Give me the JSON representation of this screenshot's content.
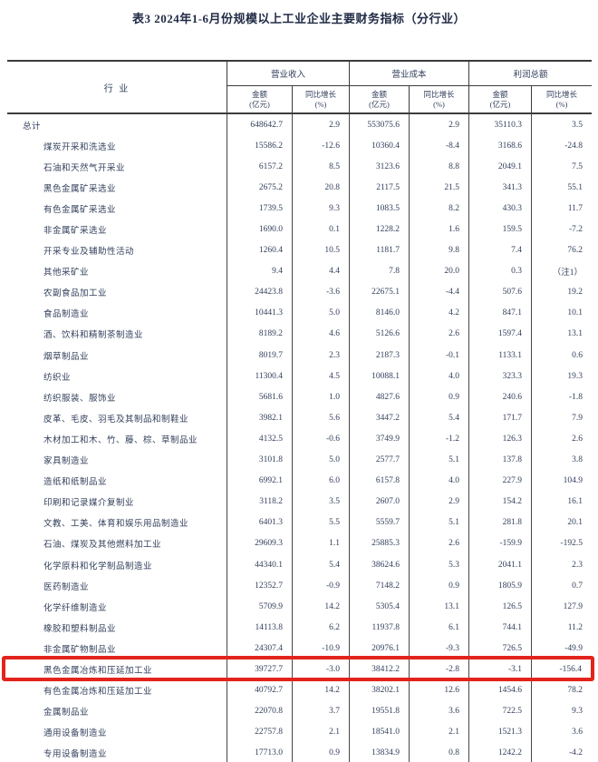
{
  "title": "表3  2024年1-6月份规模以上工业企业主要财务指标（分行业）",
  "highlight_color": "#e3241c",
  "table": {
    "industry_header": "行  业",
    "col_groups": [
      "营业收入",
      "营业成本",
      "利润总额"
    ],
    "sub_header": {
      "amount": [
        "金额",
        "(亿元)"
      ],
      "growth": [
        "同比增长",
        "(%)"
      ]
    },
    "rows": [
      {
        "name": "总计",
        "indent": false,
        "highlight": false,
        "values": [
          "648642.7",
          "2.9",
          "553075.6",
          "2.9",
          "35110.3",
          "3.5"
        ]
      },
      {
        "name": "煤炭开采和洗选业",
        "indent": true,
        "highlight": false,
        "values": [
          "15586.2",
          "-12.6",
          "10360.4",
          "-8.4",
          "3168.6",
          "-24.8"
        ]
      },
      {
        "name": "石油和天然气开采业",
        "indent": true,
        "highlight": false,
        "values": [
          "6157.2",
          "8.5",
          "3123.6",
          "8.8",
          "2049.1",
          "7.5"
        ]
      },
      {
        "name": "黑色金属矿采选业",
        "indent": true,
        "highlight": false,
        "values": [
          "2675.2",
          "20.8",
          "2117.5",
          "21.5",
          "341.3",
          "55.1"
        ]
      },
      {
        "name": "有色金属矿采选业",
        "indent": true,
        "highlight": false,
        "values": [
          "1739.5",
          "9.3",
          "1083.5",
          "8.2",
          "430.3",
          "11.7"
        ]
      },
      {
        "name": "非金属矿采选业",
        "indent": true,
        "highlight": false,
        "values": [
          "1690.0",
          "0.1",
          "1228.2",
          "1.6",
          "159.5",
          "-7.2"
        ]
      },
      {
        "name": "开采专业及辅助性活动",
        "indent": true,
        "highlight": false,
        "values": [
          "1260.4",
          "10.5",
          "1181.7",
          "9.8",
          "7.4",
          "76.2"
        ]
      },
      {
        "name": "其他采矿业",
        "indent": true,
        "highlight": false,
        "values": [
          "9.4",
          "4.4",
          "7.8",
          "20.0",
          "0.3",
          "（注1）"
        ]
      },
      {
        "name": "农副食品加工业",
        "indent": true,
        "highlight": false,
        "values": [
          "24423.8",
          "-3.6",
          "22675.1",
          "-4.4",
          "507.6",
          "19.2"
        ]
      },
      {
        "name": "食品制造业",
        "indent": true,
        "highlight": false,
        "values": [
          "10441.3",
          "5.0",
          "8146.0",
          "4.2",
          "847.1",
          "10.1"
        ]
      },
      {
        "name": "酒、饮料和精制茶制造业",
        "indent": true,
        "highlight": false,
        "values": [
          "8189.2",
          "4.6",
          "5126.6",
          "2.6",
          "1597.4",
          "13.1"
        ]
      },
      {
        "name": "烟草制品业",
        "indent": true,
        "highlight": false,
        "values": [
          "8019.7",
          "2.3",
          "2187.3",
          "-0.1",
          "1133.1",
          "0.6"
        ]
      },
      {
        "name": "纺织业",
        "indent": true,
        "highlight": false,
        "values": [
          "11300.4",
          "4.5",
          "10088.1",
          "4.0",
          "323.3",
          "19.3"
        ]
      },
      {
        "name": "纺织服装、服饰业",
        "indent": true,
        "highlight": false,
        "values": [
          "5681.6",
          "1.0",
          "4827.6",
          "0.9",
          "240.6",
          "-1.8"
        ]
      },
      {
        "name": "皮革、毛皮、羽毛及其制品和制鞋业",
        "indent": true,
        "highlight": false,
        "values": [
          "3982.1",
          "5.6",
          "3447.2",
          "5.4",
          "171.7",
          "7.9"
        ]
      },
      {
        "name": "木材加工和木、竹、藤、棕、草制品业",
        "indent": true,
        "highlight": false,
        "values": [
          "4132.5",
          "-0.6",
          "3749.9",
          "-1.2",
          "126.3",
          "2.6"
        ]
      },
      {
        "name": "家具制造业",
        "indent": true,
        "highlight": false,
        "values": [
          "3101.8",
          "5.0",
          "2577.7",
          "5.1",
          "137.8",
          "3.8"
        ]
      },
      {
        "name": "造纸和纸制品业",
        "indent": true,
        "highlight": false,
        "values": [
          "6992.1",
          "6.0",
          "6157.8",
          "4.0",
          "227.9",
          "104.9"
        ]
      },
      {
        "name": "印刷和记录媒介复制业",
        "indent": true,
        "highlight": false,
        "values": [
          "3118.2",
          "3.5",
          "2607.0",
          "2.9",
          "154.2",
          "16.1"
        ]
      },
      {
        "name": "文教、工美、体育和娱乐用品制造业",
        "indent": true,
        "highlight": false,
        "values": [
          "6401.3",
          "5.5",
          "5559.7",
          "5.1",
          "281.8",
          "20.1"
        ]
      },
      {
        "name": "石油、煤炭及其他燃料加工业",
        "indent": true,
        "highlight": false,
        "values": [
          "29609.3",
          "1.1",
          "25885.3",
          "2.6",
          "-159.9",
          "-192.5"
        ]
      },
      {
        "name": "化学原料和化学制品制造业",
        "indent": true,
        "highlight": false,
        "values": [
          "44340.1",
          "5.4",
          "38624.6",
          "5.3",
          "2041.1",
          "2.3"
        ]
      },
      {
        "name": "医药制造业",
        "indent": true,
        "highlight": false,
        "values": [
          "12352.7",
          "-0.9",
          "7148.2",
          "0.9",
          "1805.9",
          "0.7"
        ]
      },
      {
        "name": "化学纤维制造业",
        "indent": true,
        "highlight": false,
        "values": [
          "5709.9",
          "14.2",
          "5305.4",
          "13.1",
          "126.5",
          "127.9"
        ]
      },
      {
        "name": "橡胶和塑料制品业",
        "indent": true,
        "highlight": false,
        "values": [
          "14113.8",
          "6.2",
          "11937.8",
          "6.1",
          "744.1",
          "11.2"
        ]
      },
      {
        "name": "非金属矿物制品业",
        "indent": true,
        "highlight": false,
        "values": [
          "24307.4",
          "-10.9",
          "20976.1",
          "-9.3",
          "726.5",
          "-49.9"
        ]
      },
      {
        "name": "黑色金属冶炼和压延加工业",
        "indent": true,
        "highlight": true,
        "values": [
          "39727.7",
          "-3.0",
          "38412.2",
          "-2.8",
          "-3.1",
          "-156.4"
        ]
      },
      {
        "name": "有色金属冶炼和压延加工业",
        "indent": true,
        "highlight": false,
        "values": [
          "40792.7",
          "14.2",
          "38202.1",
          "12.6",
          "1454.6",
          "78.2"
        ]
      },
      {
        "name": "金属制品业",
        "indent": true,
        "highlight": false,
        "values": [
          "22070.8",
          "3.7",
          "19551.8",
          "3.6",
          "722.5",
          "9.3"
        ]
      },
      {
        "name": "通用设备制造业",
        "indent": true,
        "highlight": false,
        "values": [
          "22757.8",
          "2.1",
          "18541.0",
          "2.1",
          "1521.3",
          "3.6"
        ]
      },
      {
        "name": "专用设备制造业",
        "indent": true,
        "highlight": false,
        "values": [
          "17713.0",
          "0.9",
          "13834.9",
          "0.8",
          "1242.2",
          "-4.2"
        ]
      }
    ]
  }
}
